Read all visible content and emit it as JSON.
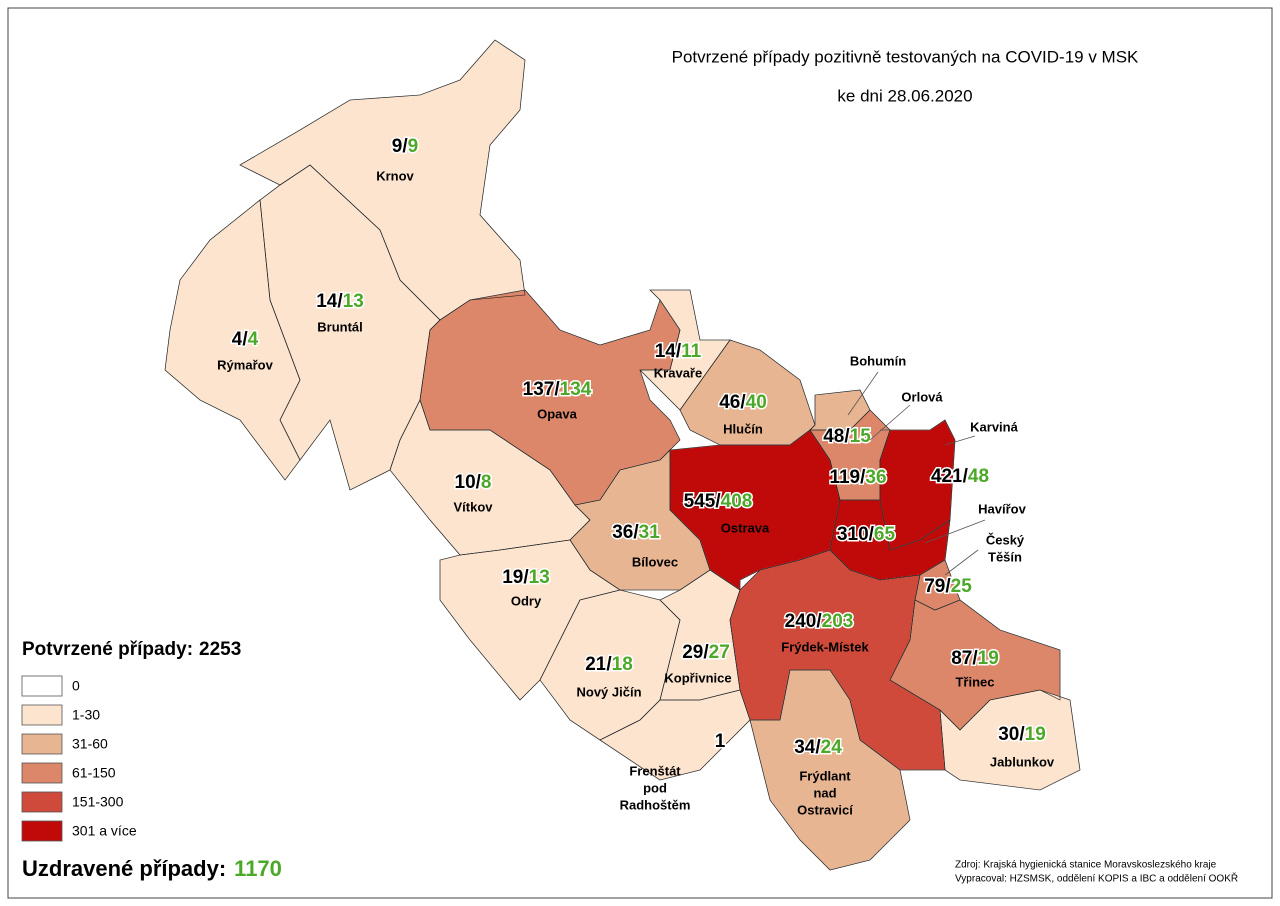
{
  "title": "Potvrzené případy pozitivně testovaných na COVID-19 v MSK",
  "subtitle": "ke dni 28.06.2020",
  "separator": "/",
  "regions": [
    {
      "name": [
        "Krnov"
      ],
      "confirmed": 9,
      "recovered": 9,
      "color": "#fce4cf"
    },
    {
      "name": [
        "Bruntál"
      ],
      "confirmed": 14,
      "recovered": 13,
      "color": "#fce4cf"
    },
    {
      "name": [
        "Rýmařov"
      ],
      "confirmed": 4,
      "recovered": 4,
      "color": "#fce4cf"
    },
    {
      "name": [
        "Opava"
      ],
      "confirmed": 137,
      "recovered": 134,
      "color": "#dd876a"
    },
    {
      "name": [
        "Kravaře"
      ],
      "confirmed": 14,
      "recovered": 11,
      "color": "#fce4cf"
    },
    {
      "name": [
        "Hlučín"
      ],
      "confirmed": 46,
      "recovered": 40,
      "color": "#e8b593"
    },
    {
      "name": [
        "Bohumín"
      ],
      "confirmed": 48,
      "recovered": 15,
      "color": "#e8b593"
    },
    {
      "name": [
        "Orlová"
      ],
      "confirmed": 119,
      "recovered": 36,
      "color": "#dd876a"
    },
    {
      "name": [
        "Karviná"
      ],
      "confirmed": 421,
      "recovered": 48,
      "color": "#c00a0a"
    },
    {
      "name": [
        "Ostrava"
      ],
      "confirmed": 545,
      "recovered": 408,
      "color": "#c00a0a"
    },
    {
      "name": [
        "Havířov"
      ],
      "confirmed": 310,
      "recovered": 65,
      "color": "#c00a0a"
    },
    {
      "name": [
        "Český",
        "Těšín"
      ],
      "confirmed": 79,
      "recovered": 25,
      "color": "#dd876a"
    },
    {
      "name": [
        "Vítkov"
      ],
      "confirmed": 10,
      "recovered": 8,
      "color": "#fce4cf"
    },
    {
      "name": [
        "Bílovec"
      ],
      "confirmed": 36,
      "recovered": 31,
      "color": "#e8b593"
    },
    {
      "name": [
        "Odry"
      ],
      "confirmed": 19,
      "recovered": 13,
      "color": "#fce4cf"
    },
    {
      "name": [
        "Nový Jičín"
      ],
      "confirmed": 21,
      "recovered": 18,
      "color": "#fce4cf"
    },
    {
      "name": [
        "Kopřivnice"
      ],
      "confirmed": 29,
      "recovered": 27,
      "color": "#fce4cf"
    },
    {
      "name": [
        "Frýdek-Místek"
      ],
      "confirmed": 240,
      "recovered": 203,
      "color": "#cf4a3a"
    },
    {
      "name": [
        "Třinec"
      ],
      "confirmed": 87,
      "recovered": 19,
      "color": "#dd876a"
    },
    {
      "name": [
        "Frenštát",
        "pod",
        "Radhoštěm"
      ],
      "confirmed": 1,
      "color": "#fce4cf"
    },
    {
      "name": [
        "Frýdlant",
        "nad",
        "Ostravicí"
      ],
      "confirmed": 34,
      "recovered": 24,
      "color": "#e8b593"
    },
    {
      "name": [
        "Jablunkov"
      ],
      "confirmed": 30,
      "recovered": 19,
      "color": "#fce4cf"
    }
  ],
  "legend": {
    "title": "Potvrzené případy:",
    "total": 2253,
    "classes": [
      {
        "label": "0",
        "color": "#ffffff"
      },
      {
        "label": "1-30",
        "color": "#fce4cf"
      },
      {
        "label": "31-60",
        "color": "#e8b593"
      },
      {
        "label": "61-150",
        "color": "#dd876a"
      },
      {
        "label": "151-300",
        "color": "#cf4a3a"
      },
      {
        "label": "301 a více",
        "color": "#c00a0a"
      }
    ]
  },
  "recovered_total": {
    "label": "Uzdravené případy:",
    "value": 1170,
    "color": "#4ca829"
  },
  "source": [
    "Zdroj: Krajská hygienická stanice Moravskoslezského kraje",
    "Vypracoval: HZSMSK, oddělení KOPIS a IBC a oddělení OOKŘ"
  ]
}
